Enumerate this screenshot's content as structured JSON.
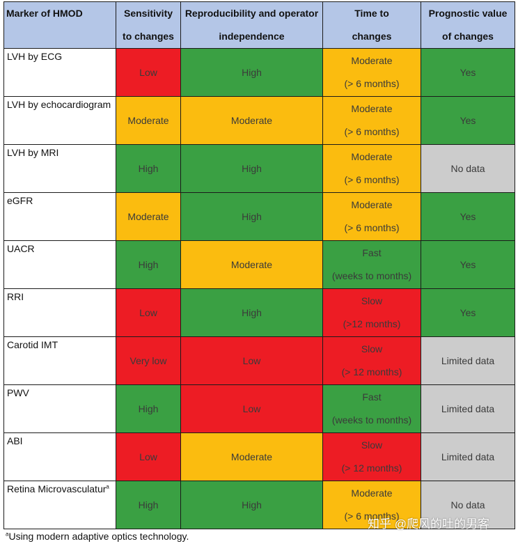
{
  "table": {
    "headers": [
      {
        "lines": [
          "Marker of HMOD"
        ]
      },
      {
        "lines": [
          "Sensitivity",
          "to changes"
        ]
      },
      {
        "lines": [
          "Reproducibility and operator",
          "independence"
        ]
      },
      {
        "lines": [
          "Time to",
          "changes"
        ]
      },
      {
        "lines": [
          "Prognostic value",
          "of changes"
        ]
      }
    ],
    "rows": [
      {
        "marker": "LVH by ECG",
        "marker_sup": "",
        "cells": [
          {
            "lines": [
              "Low"
            ],
            "color": "red"
          },
          {
            "lines": [
              "High"
            ],
            "color": "green"
          },
          {
            "lines": [
              "Moderate",
              "(> 6 months)"
            ],
            "color": "amber"
          },
          {
            "lines": [
              "Yes"
            ],
            "color": "green"
          }
        ]
      },
      {
        "marker": "LVH by echocardiogram",
        "marker_sup": "",
        "cells": [
          {
            "lines": [
              "Moderate"
            ],
            "color": "amber"
          },
          {
            "lines": [
              "Moderate"
            ],
            "color": "amber"
          },
          {
            "lines": [
              "Moderate",
              "(> 6 months)"
            ],
            "color": "amber"
          },
          {
            "lines": [
              "Yes"
            ],
            "color": "green"
          }
        ]
      },
      {
        "marker": "LVH by MRI",
        "marker_sup": "",
        "cells": [
          {
            "lines": [
              "High"
            ],
            "color": "green"
          },
          {
            "lines": [
              "High"
            ],
            "color": "green"
          },
          {
            "lines": [
              "Moderate",
              "(> 6 months)"
            ],
            "color": "amber"
          },
          {
            "lines": [
              "No data"
            ],
            "color": "grey"
          }
        ]
      },
      {
        "marker": "eGFR",
        "marker_sup": "",
        "cells": [
          {
            "lines": [
              "Moderate"
            ],
            "color": "amber"
          },
          {
            "lines": [
              "High"
            ],
            "color": "green"
          },
          {
            "lines": [
              "Moderate",
              "(> 6 months)"
            ],
            "color": "amber"
          },
          {
            "lines": [
              "Yes"
            ],
            "color": "green"
          }
        ]
      },
      {
        "marker": "UACR",
        "marker_sup": "",
        "cells": [
          {
            "lines": [
              "High"
            ],
            "color": "green"
          },
          {
            "lines": [
              "Moderate"
            ],
            "color": "amber"
          },
          {
            "lines": [
              "Fast",
              "(weeks to months)"
            ],
            "color": "green"
          },
          {
            "lines": [
              "Yes"
            ],
            "color": "green"
          }
        ]
      },
      {
        "marker": "RRI",
        "marker_sup": "",
        "cells": [
          {
            "lines": [
              "Low"
            ],
            "color": "red"
          },
          {
            "lines": [
              "High"
            ],
            "color": "green"
          },
          {
            "lines": [
              "Slow",
              "(>12 months)"
            ],
            "color": "red"
          },
          {
            "lines": [
              "Yes"
            ],
            "color": "green"
          }
        ]
      },
      {
        "marker": "Carotid IMT",
        "marker_sup": "",
        "cells": [
          {
            "lines": [
              "Very low"
            ],
            "color": "red"
          },
          {
            "lines": [
              "Low"
            ],
            "color": "red"
          },
          {
            "lines": [
              "Slow",
              "(> 12 months)"
            ],
            "color": "red"
          },
          {
            "lines": [
              "Limited data"
            ],
            "color": "grey"
          }
        ]
      },
      {
        "marker": "PWV",
        "marker_sup": "",
        "cells": [
          {
            "lines": [
              "High"
            ],
            "color": "green"
          },
          {
            "lines": [
              "Low"
            ],
            "color": "red"
          },
          {
            "lines": [
              "Fast",
              "(weeks to months)"
            ],
            "color": "green"
          },
          {
            "lines": [
              "Limited data"
            ],
            "color": "grey"
          }
        ]
      },
      {
        "marker": "ABI",
        "marker_sup": "",
        "cells": [
          {
            "lines": [
              "Low"
            ],
            "color": "red"
          },
          {
            "lines": [
              "Moderate"
            ],
            "color": "amber"
          },
          {
            "lines": [
              "Slow",
              "(> 12 months)"
            ],
            "color": "red"
          },
          {
            "lines": [
              "Limited data"
            ],
            "color": "grey"
          }
        ]
      },
      {
        "marker": "Retina Microvasculatur",
        "marker_sup": "a",
        "cells": [
          {
            "lines": [
              "High"
            ],
            "color": "green"
          },
          {
            "lines": [
              "High"
            ],
            "color": "green"
          },
          {
            "lines": [
              "Moderate",
              "(> 6 months)"
            ],
            "color": "amber"
          },
          {
            "lines": [
              "No data"
            ],
            "color": "grey"
          }
        ]
      }
    ]
  },
  "footnote": {
    "sup": "a",
    "text": "Using modern adaptive optics technology."
  },
  "watermark": "知乎 @爬风的吐的男客",
  "colors": {
    "red": "#ed1c24",
    "green": "#3aa043",
    "amber": "#fbbc0f",
    "grey": "#cccccc",
    "header": "#b4c6e7"
  }
}
